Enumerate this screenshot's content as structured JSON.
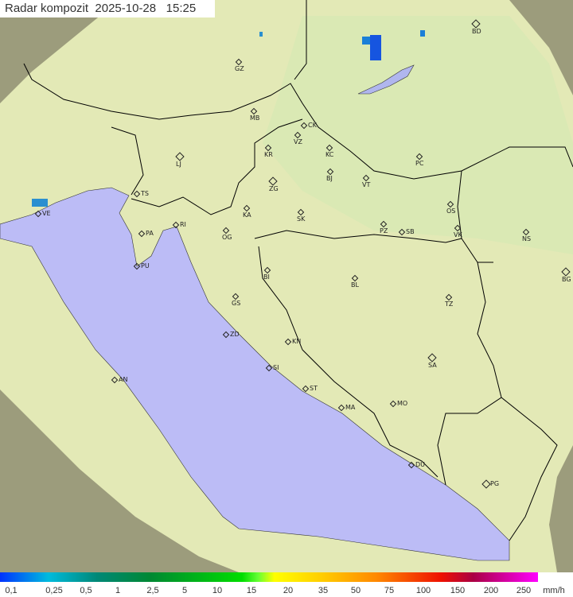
{
  "header": {
    "title": "Radar kompozit",
    "date": "2025-10-28",
    "time": "15:25"
  },
  "colors": {
    "sea": "#bcbcf6",
    "coverage_land": "#e6ecb8",
    "outside_coverage": "#9a9a7a",
    "border": "#000000"
  },
  "cities": [
    {
      "code": "GZ",
      "capital": false
    },
    {
      "code": "BD",
      "capital": true
    },
    {
      "code": "MB",
      "capital": false
    },
    {
      "code": "CK",
      "capital": false
    },
    {
      "code": "VZ",
      "capital": false
    },
    {
      "code": "KR",
      "capital": false
    },
    {
      "code": "KC",
      "capital": false
    },
    {
      "code": "PC",
      "capital": false
    },
    {
      "code": "LJ",
      "capital": true
    },
    {
      "code": "ZG",
      "capital": true
    },
    {
      "code": "BJ",
      "capital": false
    },
    {
      "code": "VT",
      "capital": false
    },
    {
      "code": "TS",
      "capital": false
    },
    {
      "code": "VE",
      "capital": false
    },
    {
      "code": "RI",
      "capital": false
    },
    {
      "code": "KA",
      "capital": false
    },
    {
      "code": "SK",
      "capital": false
    },
    {
      "code": "OS",
      "capital": false
    },
    {
      "code": "PA",
      "capital": false
    },
    {
      "code": "OG",
      "capital": false
    },
    {
      "code": "PZ",
      "capital": false
    },
    {
      "code": "SB",
      "capital": false
    },
    {
      "code": "VK",
      "capital": false
    },
    {
      "code": "NS",
      "capital": false
    },
    {
      "code": "PU",
      "capital": false
    },
    {
      "code": "BG",
      "capital": true
    },
    {
      "code": "BI",
      "capital": false
    },
    {
      "code": "BL",
      "capital": false
    },
    {
      "code": "GS",
      "capital": false
    },
    {
      "code": "TZ",
      "capital": false
    },
    {
      "code": "ZD",
      "capital": false
    },
    {
      "code": "KN",
      "capital": false
    },
    {
      "code": "SA",
      "capital": true
    },
    {
      "code": "AN",
      "capital": false
    },
    {
      "code": "SI",
      "capital": false
    },
    {
      "code": "ST",
      "capital": false
    },
    {
      "code": "MA",
      "capital": false
    },
    {
      "code": "MO",
      "capital": false
    },
    {
      "code": "DU",
      "capital": false
    },
    {
      "code": "PG",
      "capital": true
    }
  ],
  "legend": {
    "labels": [
      "0,1",
      "0,25",
      "0,5",
      "1",
      "2,5",
      "5",
      "10",
      "15",
      "20",
      "35",
      "50",
      "75",
      "100",
      "150",
      "200",
      "250"
    ],
    "unit": "mm/h"
  }
}
